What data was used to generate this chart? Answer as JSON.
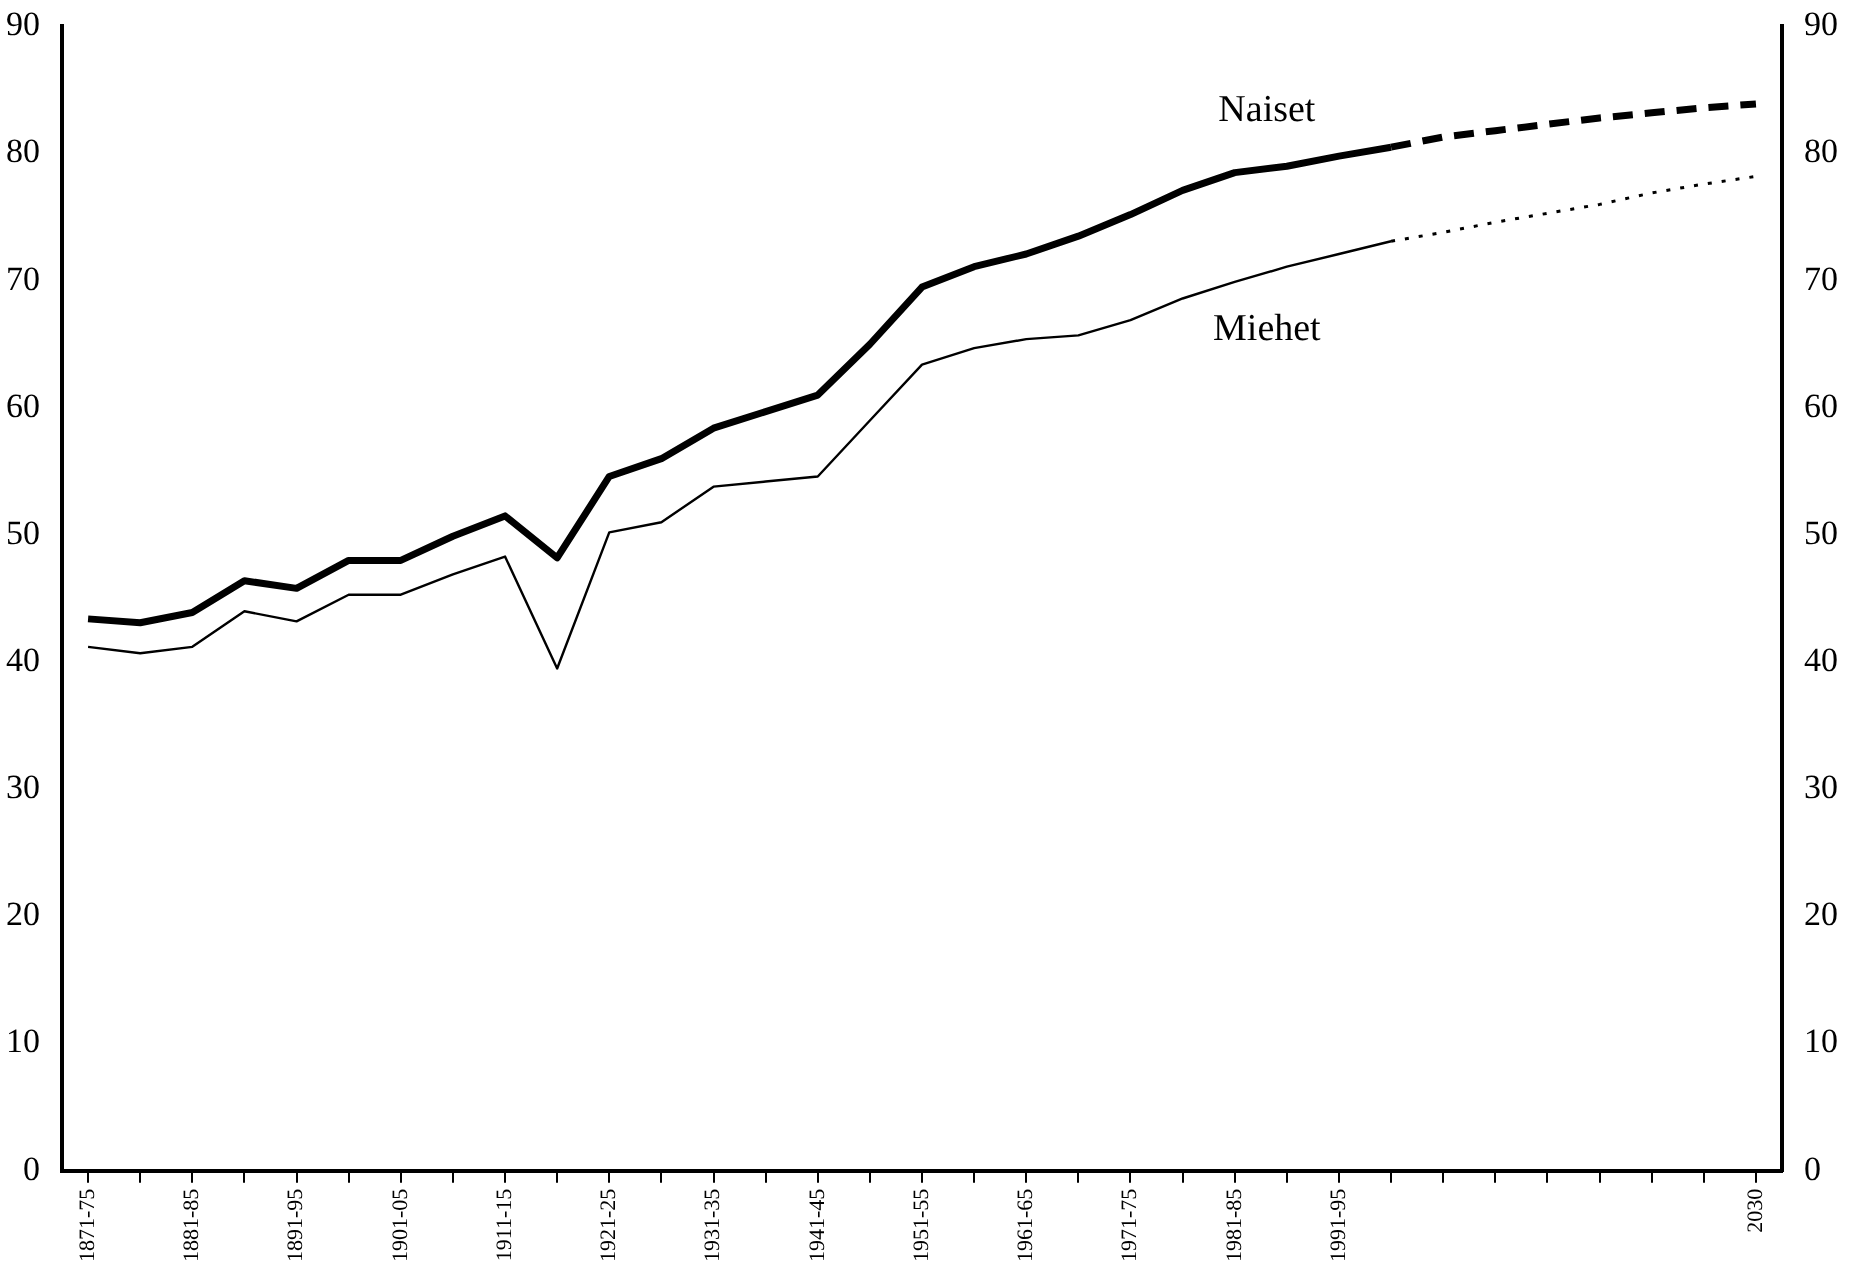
{
  "chart_data": {
    "type": "line",
    "categories": [
      "1871-75",
      null,
      "1881-85",
      null,
      "1891-95",
      null,
      "1901-05",
      null,
      "1911-15",
      null,
      "1921-25",
      null,
      "1931-35",
      null,
      "1941-45",
      null,
      "1951-55",
      null,
      "1961-65",
      null,
      "1971-75",
      null,
      "1981-85",
      null,
      "1991-95",
      null,
      null,
      null,
      null,
      null,
      null,
      null,
      "2030"
    ],
    "series": [
      {
        "name": "Naiset",
        "color": "#000000",
        "line_style": "solid",
        "values": [
          43.4,
          43.1,
          43.9,
          46.4,
          45.8,
          48.0,
          48.0,
          49.9,
          51.5,
          48.2,
          54.6,
          56.0,
          58.4,
          59.7,
          61.0,
          65.0,
          69.5,
          71.1,
          72.1,
          73.5,
          75.2,
          77.1,
          78.5,
          79.0,
          79.8,
          80.5,
          null,
          null,
          null,
          null,
          null,
          null,
          null
        ]
      },
      {
        "name": "Miehet",
        "color": "#000000",
        "line_style": "solid",
        "values": [
          41.2,
          40.7,
          41.2,
          44.0,
          43.2,
          45.3,
          45.3,
          46.9,
          48.3,
          39.5,
          50.2,
          51.0,
          53.8,
          54.2,
          54.6,
          59.0,
          63.4,
          64.7,
          65.4,
          65.7,
          66.9,
          68.6,
          69.9,
          71.1,
          72.1,
          73.1,
          null,
          null,
          null,
          null,
          null,
          null,
          null
        ]
      },
      {
        "color": "#000000",
        "line_style": "dashed",
        "values": [
          null,
          null,
          null,
          null,
          null,
          null,
          null,
          null,
          null,
          null,
          null,
          null,
          null,
          null,
          null,
          null,
          null,
          null,
          null,
          null,
          null,
          null,
          null,
          null,
          null,
          80.5,
          81.3,
          81.8,
          82.3,
          82.8,
          83.2,
          83.6,
          83.9
        ]
      },
      {
        "color": "#000000",
        "line_style": "dotted",
        "values": [
          null,
          null,
          null,
          null,
          null,
          null,
          null,
          null,
          null,
          null,
          null,
          null,
          null,
          null,
          null,
          null,
          null,
          null,
          null,
          null,
          null,
          null,
          null,
          null,
          null,
          73.1,
          73.8,
          74.6,
          75.3,
          76.0,
          76.9,
          77.6,
          78.2
        ]
      }
    ],
    "ylim": [
      0,
      90
    ],
    "yticks": [
      0,
      10,
      20,
      30,
      40,
      50,
      60,
      70,
      80,
      90
    ],
    "y2lim": [
      0,
      90
    ],
    "y2ticks": [
      0,
      10,
      20,
      30,
      40,
      50,
      60,
      70,
      80,
      90
    ],
    "grid": false,
    "legend": false,
    "marker": "none"
  }
}
